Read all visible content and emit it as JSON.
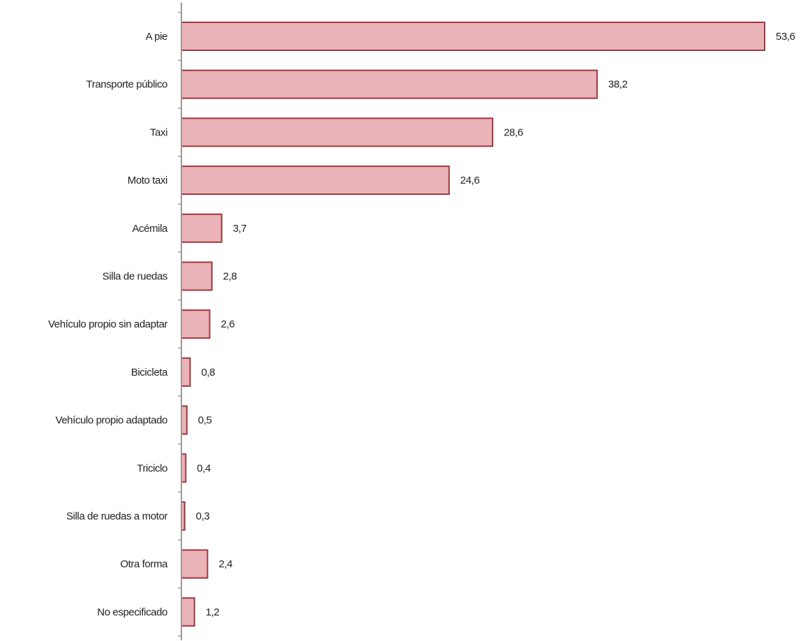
{
  "chart_data": {
    "type": "bar",
    "orientation": "horizontal",
    "categories": [
      "A pie",
      "Transporte público",
      "Taxi",
      "Moto taxi",
      "Acémila",
      "Silla de ruedas",
      "Vehículo propio sin adaptar",
      "Bicicleta",
      "Vehículo propio adaptado",
      "Triciclo",
      "Silla de ruedas a motor",
      "Otra forma",
      "No especificado"
    ],
    "values": [
      53.6,
      38.2,
      28.6,
      24.6,
      3.7,
      2.8,
      2.6,
      0.8,
      0.5,
      0.4,
      0.3,
      2.4,
      1.2
    ],
    "value_labels": [
      "53,6",
      "38,2",
      "28,6",
      "24,6",
      "3,7",
      "2,8",
      "2,6",
      "0,8",
      "0,5",
      "0,4",
      "0,3",
      "2,4",
      "1,2"
    ],
    "xlim": [
      0,
      53.6
    ],
    "grid": false,
    "legend": "none",
    "colors": {
      "bar_fill": "#eab4b8",
      "bar_stroke": "#a0343e",
      "axis": "#9a9a9a",
      "text": "#222222"
    }
  }
}
